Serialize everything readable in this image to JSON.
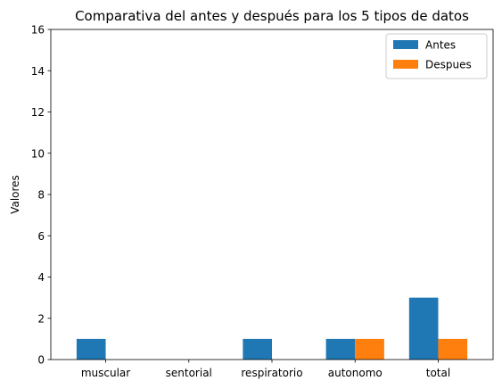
{
  "chart_data": {
    "type": "bar",
    "title": "Comparativa del antes y después para los 5 tipos de datos",
    "xlabel": "",
    "ylabel": "Valores",
    "categories": [
      "muscular",
      "sentorial",
      "respiratorio",
      "autonomo",
      "total"
    ],
    "series": [
      {
        "name": "Antes",
        "color": "#1f77b4",
        "values": [
          1,
          0,
          1,
          1,
          3
        ]
      },
      {
        "name": "Despues",
        "color": "#ff7f0e",
        "values": [
          0,
          0,
          0,
          1,
          1
        ]
      }
    ],
    "ylim": [
      0,
      16
    ],
    "yticks": [
      "0",
      "2",
      "4",
      "6",
      "8",
      "10",
      "12",
      "14",
      "16"
    ],
    "grid": false,
    "legend_position": "top-right"
  }
}
